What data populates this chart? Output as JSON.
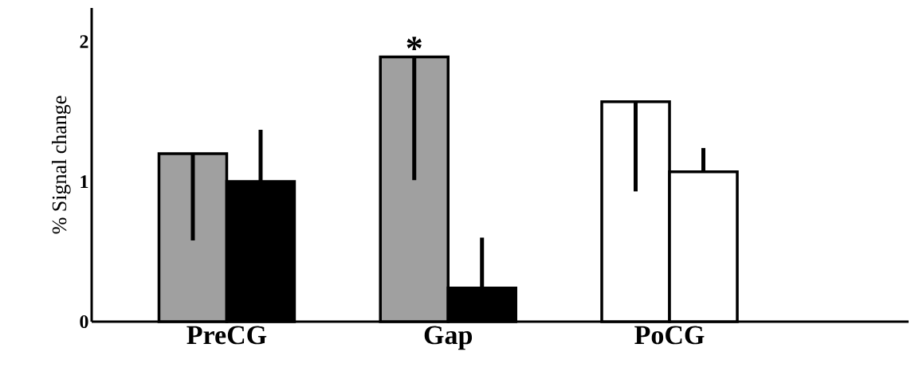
{
  "chart_data": {
    "type": "bar",
    "ylabel": "% Signal change",
    "categories": [
      "PreCG",
      "Gap",
      "PoCG"
    ],
    "series": [
      {
        "colors": [
          "#a0a0a0",
          "#a0a0a0",
          "#ffffff"
        ],
        "values": [
          1.2,
          1.89,
          1.57
        ],
        "errors": [
          [
            0.58,
            1.2
          ],
          [
            1.01,
            1.89
          ],
          [
            0.93,
            1.57
          ]
        ]
      },
      {
        "colors": [
          "#000000",
          "#000000",
          "#ffffff"
        ],
        "values": [
          1.0,
          0.24,
          1.07
        ],
        "errors": [
          [
            1.0,
            1.37
          ],
          [
            0.24,
            0.6
          ],
          [
            1.07,
            1.24
          ]
        ]
      }
    ],
    "ylim": [
      0,
      2.24
    ],
    "yticks": [
      0,
      1,
      2
    ],
    "grid": false,
    "annotations": [
      {
        "text": "*",
        "x": "Gap",
        "y": 1.89
      }
    ]
  }
}
